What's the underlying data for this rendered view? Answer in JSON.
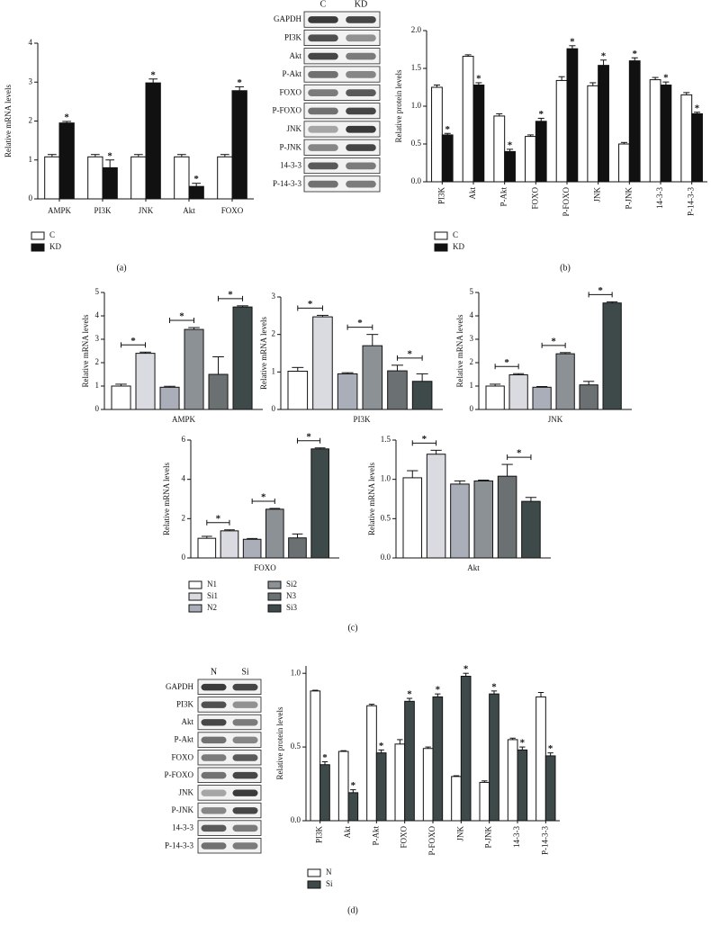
{
  "chart_data": [
    {
      "type": "bar",
      "ylabel": "Relative mRNA levels",
      "categories": [
        "AMPK",
        "PI3K",
        "JNK",
        "Akt",
        "FOXO"
      ],
      "series": [
        {
          "name": "C",
          "color": "#ffffff",
          "values": [
            1.08,
            1.08,
            1.08,
            1.08,
            1.08
          ],
          "errors": [
            0.06,
            0.06,
            0.06,
            0.06,
            0.06
          ]
        },
        {
          "name": "KD",
          "color": "#111111",
          "values": [
            1.95,
            0.8,
            2.98,
            0.32,
            2.78
          ],
          "errors": [
            0.04,
            0.2,
            0.1,
            0.08,
            0.1
          ]
        }
      ],
      "ylim": [
        0,
        4
      ],
      "yticks": [
        0,
        1,
        2,
        3,
        4
      ],
      "annotation": "*"
    },
    {
      "type": "bar",
      "ylabel": "Relative protein levels",
      "categories": [
        "PI3K",
        "Akt",
        "P-Akt",
        "FOXO",
        "P-FOXO",
        "JNK",
        "P-JNK",
        "14-3-3",
        "P-14-3-3"
      ],
      "series": [
        {
          "name": "C",
          "color": "#ffffff",
          "values": [
            1.25,
            1.66,
            0.87,
            0.6,
            1.34,
            1.27,
            0.5,
            1.35,
            1.15
          ],
          "errors": [
            0.03,
            0.02,
            0.03,
            0.02,
            0.05,
            0.04,
            0.02,
            0.03,
            0.03
          ]
        },
        {
          "name": "KD",
          "color": "#111111",
          "values": [
            0.62,
            1.28,
            0.4,
            0.8,
            1.76,
            1.54,
            1.6,
            1.28,
            0.9
          ],
          "errors": [
            0.02,
            0.03,
            0.03,
            0.04,
            0.04,
            0.07,
            0.04,
            0.04,
            0.02
          ]
        }
      ],
      "ylim": [
        0,
        2
      ],
      "yticks": [
        {
          "value": 0,
          "label": "0.0"
        },
        0.5,
        {
          "value": 1,
          "label": "1.0"
        },
        1.5,
        {
          "value": 2,
          "label": "2.0"
        }
      ],
      "annotation": "*"
    },
    {
      "type": "bar-panels",
      "ylabel": "Relative mRNA levels",
      "series": [
        {
          "name": "N1",
          "color": "#ffffff"
        },
        {
          "name": "Si1",
          "color": "#d9dbe0"
        },
        {
          "name": "N2",
          "color": "#a9aeb8"
        },
        {
          "name": "Si2",
          "color": "#8c9196"
        },
        {
          "name": "N3",
          "color": "#6b7072"
        },
        {
          "name": "Si3",
          "color": "#3e4a4a"
        }
      ],
      "panels": [
        {
          "xlabel": "AMPK",
          "values": [
            1.0,
            2.4,
            0.95,
            3.42,
            1.5,
            4.38
          ],
          "errors": [
            0.08,
            0.05,
            0.04,
            0.08,
            0.75,
            0.05
          ],
          "ylim": [
            0,
            5
          ],
          "yticks": [
            0,
            1,
            2,
            3,
            4,
            5
          ],
          "annotations": [
            "*",
            "*",
            "*"
          ]
        },
        {
          "xlabel": "PI3K",
          "values": [
            1.02,
            2.47,
            0.95,
            1.7,
            1.03,
            0.75
          ],
          "errors": [
            0.1,
            0.04,
            0.03,
            0.3,
            0.15,
            0.2
          ],
          "ylim": [
            0,
            3
          ],
          "yticks": [
            0,
            1,
            2,
            3
          ],
          "annotations": [
            "*",
            "*",
            "*"
          ]
        },
        {
          "xlabel": "JNK",
          "values": [
            1.0,
            1.48,
            0.95,
            2.38,
            1.05,
            4.55
          ],
          "errors": [
            0.08,
            0.05,
            0.03,
            0.05,
            0.15,
            0.05
          ],
          "ylim": [
            0,
            5
          ],
          "yticks": [
            0,
            1,
            2,
            3,
            4,
            5
          ],
          "annotations": [
            "*",
            "*",
            "*"
          ]
        },
        {
          "xlabel": "FOXO",
          "values": [
            1.0,
            1.38,
            0.95,
            2.48,
            1.02,
            5.55
          ],
          "errors": [
            0.1,
            0.05,
            0.04,
            0.04,
            0.2,
            0.05
          ],
          "ylim": [
            0,
            6
          ],
          "yticks": [
            0,
            2,
            4,
            6
          ],
          "annotations": [
            "*",
            "*",
            "*"
          ]
        },
        {
          "xlabel": "Akt",
          "values": [
            1.02,
            1.32,
            0.94,
            0.98,
            1.04,
            0.72
          ],
          "errors": [
            0.09,
            0.05,
            0.04,
            0.01,
            0.15,
            0.05
          ],
          "ylim": [
            0,
            1.5
          ],
          "yticks": [
            {
              "value": 0,
              "label": "0.0"
            },
            0.5,
            {
              "value": 1,
              "label": "1.0"
            },
            1.5
          ],
          "annotations": [
            "*",
            "*"
          ]
        }
      ]
    },
    {
      "type": "bar",
      "ylabel": "Relative protein levels",
      "categories": [
        "PI3K",
        "Akt",
        "P-Akt",
        "FOXO",
        "P-FOXO",
        "JNK",
        "P-JNK",
        "14-3-3",
        "P-14-3-3"
      ],
      "series": [
        {
          "name": "N",
          "color": "#ffffff",
          "values": [
            0.88,
            0.47,
            0.78,
            0.52,
            0.49,
            0.3,
            0.26,
            0.55,
            0.84
          ],
          "errors": [
            0.005,
            0.005,
            0.01,
            0.03,
            0.01,
            0.005,
            0.01,
            0.01,
            0.03
          ]
        },
        {
          "name": "Si",
          "color": "#3e4a4a",
          "values": [
            0.38,
            0.19,
            0.46,
            0.81,
            0.84,
            0.98,
            0.86,
            0.48,
            0.44
          ],
          "errors": [
            0.02,
            0.02,
            0.02,
            0.02,
            0.02,
            0.02,
            0.02,
            0.02,
            0.02
          ]
        }
      ],
      "ylim": [
        0,
        1.05
      ],
      "yticks": [
        {
          "value": 0,
          "label": "0.0"
        },
        0.5,
        {
          "value": 1,
          "label": "1.0"
        }
      ],
      "annotation": "*"
    }
  ],
  "blots": [
    {
      "columns": [
        "C",
        "KD"
      ],
      "rows": [
        "GAPDH",
        "PI3K",
        "Akt",
        "P-Akt",
        "FOXO",
        "P-FOXO",
        "JNK",
        "P-JNK",
        "14-3-3",
        "P-14-3-3"
      ]
    },
    {
      "columns": [
        "N",
        "Si"
      ],
      "rows": [
        "GAPDH",
        "PI3K",
        "Akt",
        "P-Akt",
        "FOXO",
        "P-FOXO",
        "JNK",
        "P-JNK",
        "14-3-3",
        "P-14-3-3"
      ]
    }
  ],
  "panel_labels": [
    "(a)",
    "(b)",
    "(c)",
    "(d)"
  ]
}
